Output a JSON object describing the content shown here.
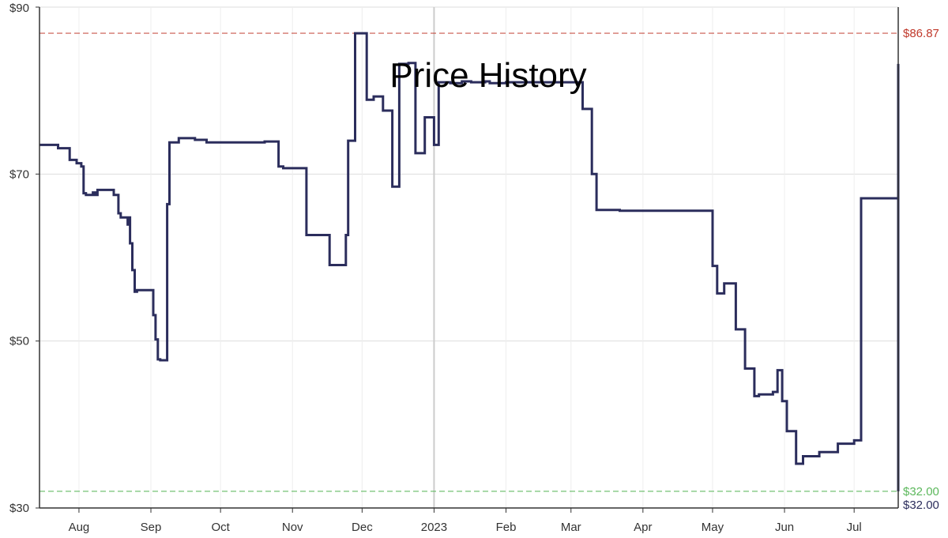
{
  "chart_data": {
    "type": "line",
    "title": "Price History",
    "line_style": "step",
    "x_range": [
      "2022-07-15",
      "2023-07-20"
    ],
    "ylim": [
      30,
      90
    ],
    "grid": true,
    "y_ticks": [
      {
        "value": 30,
        "label": "$30"
      },
      {
        "value": 50,
        "label": "$50"
      },
      {
        "value": 70,
        "label": "$70"
      },
      {
        "value": 90,
        "label": "$90"
      }
    ],
    "x_ticks": [
      {
        "date": "2022-08-01",
        "label": "Aug"
      },
      {
        "date": "2022-09-01",
        "label": "Sep"
      },
      {
        "date": "2022-10-01",
        "label": "Oct"
      },
      {
        "date": "2022-11-01",
        "label": "Nov"
      },
      {
        "date": "2022-12-01",
        "label": "Dec"
      },
      {
        "date": "2023-01-01",
        "label": "2023"
      },
      {
        "date": "2023-02-01",
        "label": "Feb"
      },
      {
        "date": "2023-03-01",
        "label": "Mar"
      },
      {
        "date": "2023-04-01",
        "label": "Apr"
      },
      {
        "date": "2023-05-01",
        "label": "May"
      },
      {
        "date": "2023-06-01",
        "label": "Jun"
      },
      {
        "date": "2023-07-01",
        "label": "Jul"
      }
    ],
    "reference_lines": [
      {
        "name": "highest",
        "value": 86.87,
        "label": "$86.87",
        "color": "#c0392b"
      },
      {
        "name": "lowest",
        "value": 32.0,
        "label": "$32.00",
        "color": "#5cb85c"
      }
    ],
    "current": {
      "value": 32.0,
      "label": "$32.00",
      "color": "#2b2d5c"
    },
    "series": [
      {
        "color": "#2b2d5c",
        "x": [
          "2022-07-15",
          "2022-07-23",
          "2022-07-28",
          "2022-07-31",
          "2022-08-02",
          "2022-08-03",
          "2022-08-04",
          "2022-08-07",
          "2022-08-08",
          "2022-08-09",
          "2022-08-16",
          "2022-08-18",
          "2022-08-19",
          "2022-08-22",
          "2022-08-22",
          "2022-08-23",
          "2022-08-24",
          "2022-08-25",
          "2022-08-26",
          "2022-09-02",
          "2022-09-03",
          "2022-09-04",
          "2022-09-05",
          "2022-09-08",
          "2022-09-09",
          "2022-09-13",
          "2022-09-20",
          "2022-09-25",
          "2022-10-20",
          "2022-10-26",
          "2022-10-28",
          "2022-11-07",
          "2022-11-17",
          "2022-11-24",
          "2022-11-25",
          "2022-11-28",
          "2022-12-03",
          "2022-12-06",
          "2022-12-10",
          "2022-12-14",
          "2022-12-17",
          "2022-12-21",
          "2022-12-24",
          "2022-12-28",
          "2023-01-01",
          "2023-01-03",
          "2023-01-08",
          "2023-01-13",
          "2023-01-17",
          "2023-01-23",
          "2023-01-25",
          "2023-02-01",
          "2023-03-06",
          "2023-03-10",
          "2023-03-12",
          "2023-03-22",
          "2023-03-24",
          "2023-03-26",
          "2023-05-01",
          "2023-05-03",
          "2023-05-06",
          "2023-05-11",
          "2023-05-15",
          "2023-05-19",
          "2023-05-21",
          "2023-05-27",
          "2023-05-29",
          "2023-05-31",
          "2023-06-02",
          "2023-06-06",
          "2023-06-09",
          "2023-06-16",
          "2023-06-24",
          "2023-07-01",
          "2023-07-04",
          "2023-07-06",
          "2023-07-08",
          "2023-07-09",
          "2023-07-11",
          "2023-07-12",
          "2023-07-14",
          "2023-07-19",
          "2023-07-20",
          "2023-07-20"
        ],
        "y": [
          73.5,
          73.1,
          71.7,
          71.3,
          70.9,
          67.7,
          67.5,
          67.8,
          67.5,
          68.1,
          67.5,
          65.3,
          64.8,
          63.8,
          64.8,
          61.7,
          58.5,
          55.9,
          56.1,
          53.1,
          50.2,
          47.8,
          47.7,
          66.4,
          73.8,
          74.3,
          74.1,
          73.8,
          73.9,
          70.9,
          70.7,
          62.7,
          59.1,
          62.7,
          74.0,
          86.87,
          78.9,
          79.3,
          77.6,
          68.5,
          83.2,
          83.3,
          72.5,
          76.8,
          73.5,
          81.0,
          80.9,
          81.1,
          81.0,
          81.1,
          80.9,
          81.0,
          77.8,
          70.0,
          65.7,
          65.6,
          65.6,
          65.6,
          59.0,
          55.7,
          56.9,
          51.4,
          46.7,
          43.4,
          43.6,
          43.9,
          46.5,
          42.8,
          39.2,
          35.3,
          36.2,
          36.7,
          37.7,
          38.1,
          67.1,
          67.1,
          67.1,
          67.1,
          67.1,
          67.1,
          67.1,
          67.1,
          83.2,
          32.0
        ]
      }
    ]
  }
}
